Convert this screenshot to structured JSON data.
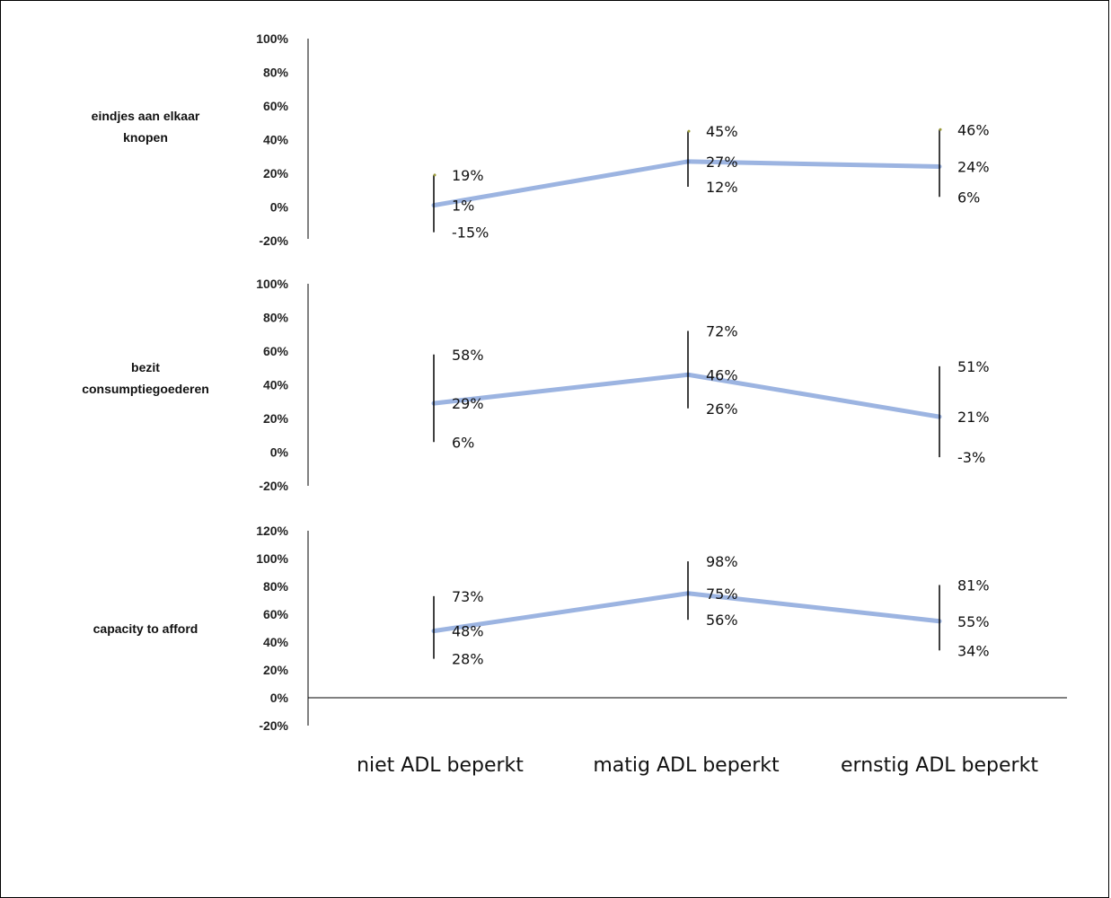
{
  "chart_data": {
    "type": "line",
    "categories": [
      "niet ADL beperkt",
      "matig ADL beperkt",
      "ernstig ADL beperkt"
    ],
    "colors": {
      "line": "#7b9bd8",
      "error_bar": "#000000",
      "axis": "#000000",
      "cap": "#9a9a3a"
    },
    "panels": [
      {
        "label_lines": [
          "eindjes aan elkaar",
          "knopen"
        ],
        "ticks": [
          "100%",
          "80%",
          "60%",
          "40%",
          "20%",
          "0%",
          "-20%"
        ],
        "ylim": [
          -20,
          100
        ],
        "points": [
          {
            "value": 1,
            "low": -15,
            "high": 19,
            "value_label": "1%",
            "low_label": "-15%",
            "high_label": "19%"
          },
          {
            "value": 27,
            "low": 12,
            "high": 45,
            "value_label": "27%",
            "low_label": "12%",
            "high_label": "45%"
          },
          {
            "value": 24,
            "low": 6,
            "high": 46,
            "value_label": "24%",
            "low_label": "6%",
            "high_label": "46%"
          }
        ]
      },
      {
        "label_lines": [
          "bezit",
          "consumptiegoederen"
        ],
        "ticks": [
          "100%",
          "80%",
          "60%",
          "40%",
          "20%",
          "0%",
          "-20%"
        ],
        "ylim": [
          -20,
          100
        ],
        "points": [
          {
            "value": 29,
            "low": 6,
            "high": 58,
            "value_label": "29%",
            "low_label": "6%",
            "high_label": "58%"
          },
          {
            "value": 46,
            "low": 26,
            "high": 72,
            "value_label": "46%",
            "low_label": "26%",
            "high_label": "72%"
          },
          {
            "value": 21,
            "low": -3,
            "high": 51,
            "value_label": "21%",
            "low_label": "-3%",
            "high_label": "51%"
          }
        ]
      },
      {
        "label_lines": [
          "capacity to afford"
        ],
        "ticks": [
          "120%",
          "100%",
          "80%",
          "60%",
          "40%",
          "20%",
          "0%",
          "-20%"
        ],
        "ylim": [
          -20,
          120
        ],
        "points": [
          {
            "value": 48,
            "low": 28,
            "high": 73,
            "value_label": "48%",
            "low_label": "28%",
            "high_label": "73%"
          },
          {
            "value": 75,
            "low": 56,
            "high": 98,
            "value_label": "75%",
            "low_label": "56%",
            "high_label": "98%"
          },
          {
            "value": 55,
            "low": 34,
            "high": 81,
            "value_label": "55%",
            "low_label": "34%",
            "high_label": "81%"
          }
        ]
      }
    ]
  }
}
